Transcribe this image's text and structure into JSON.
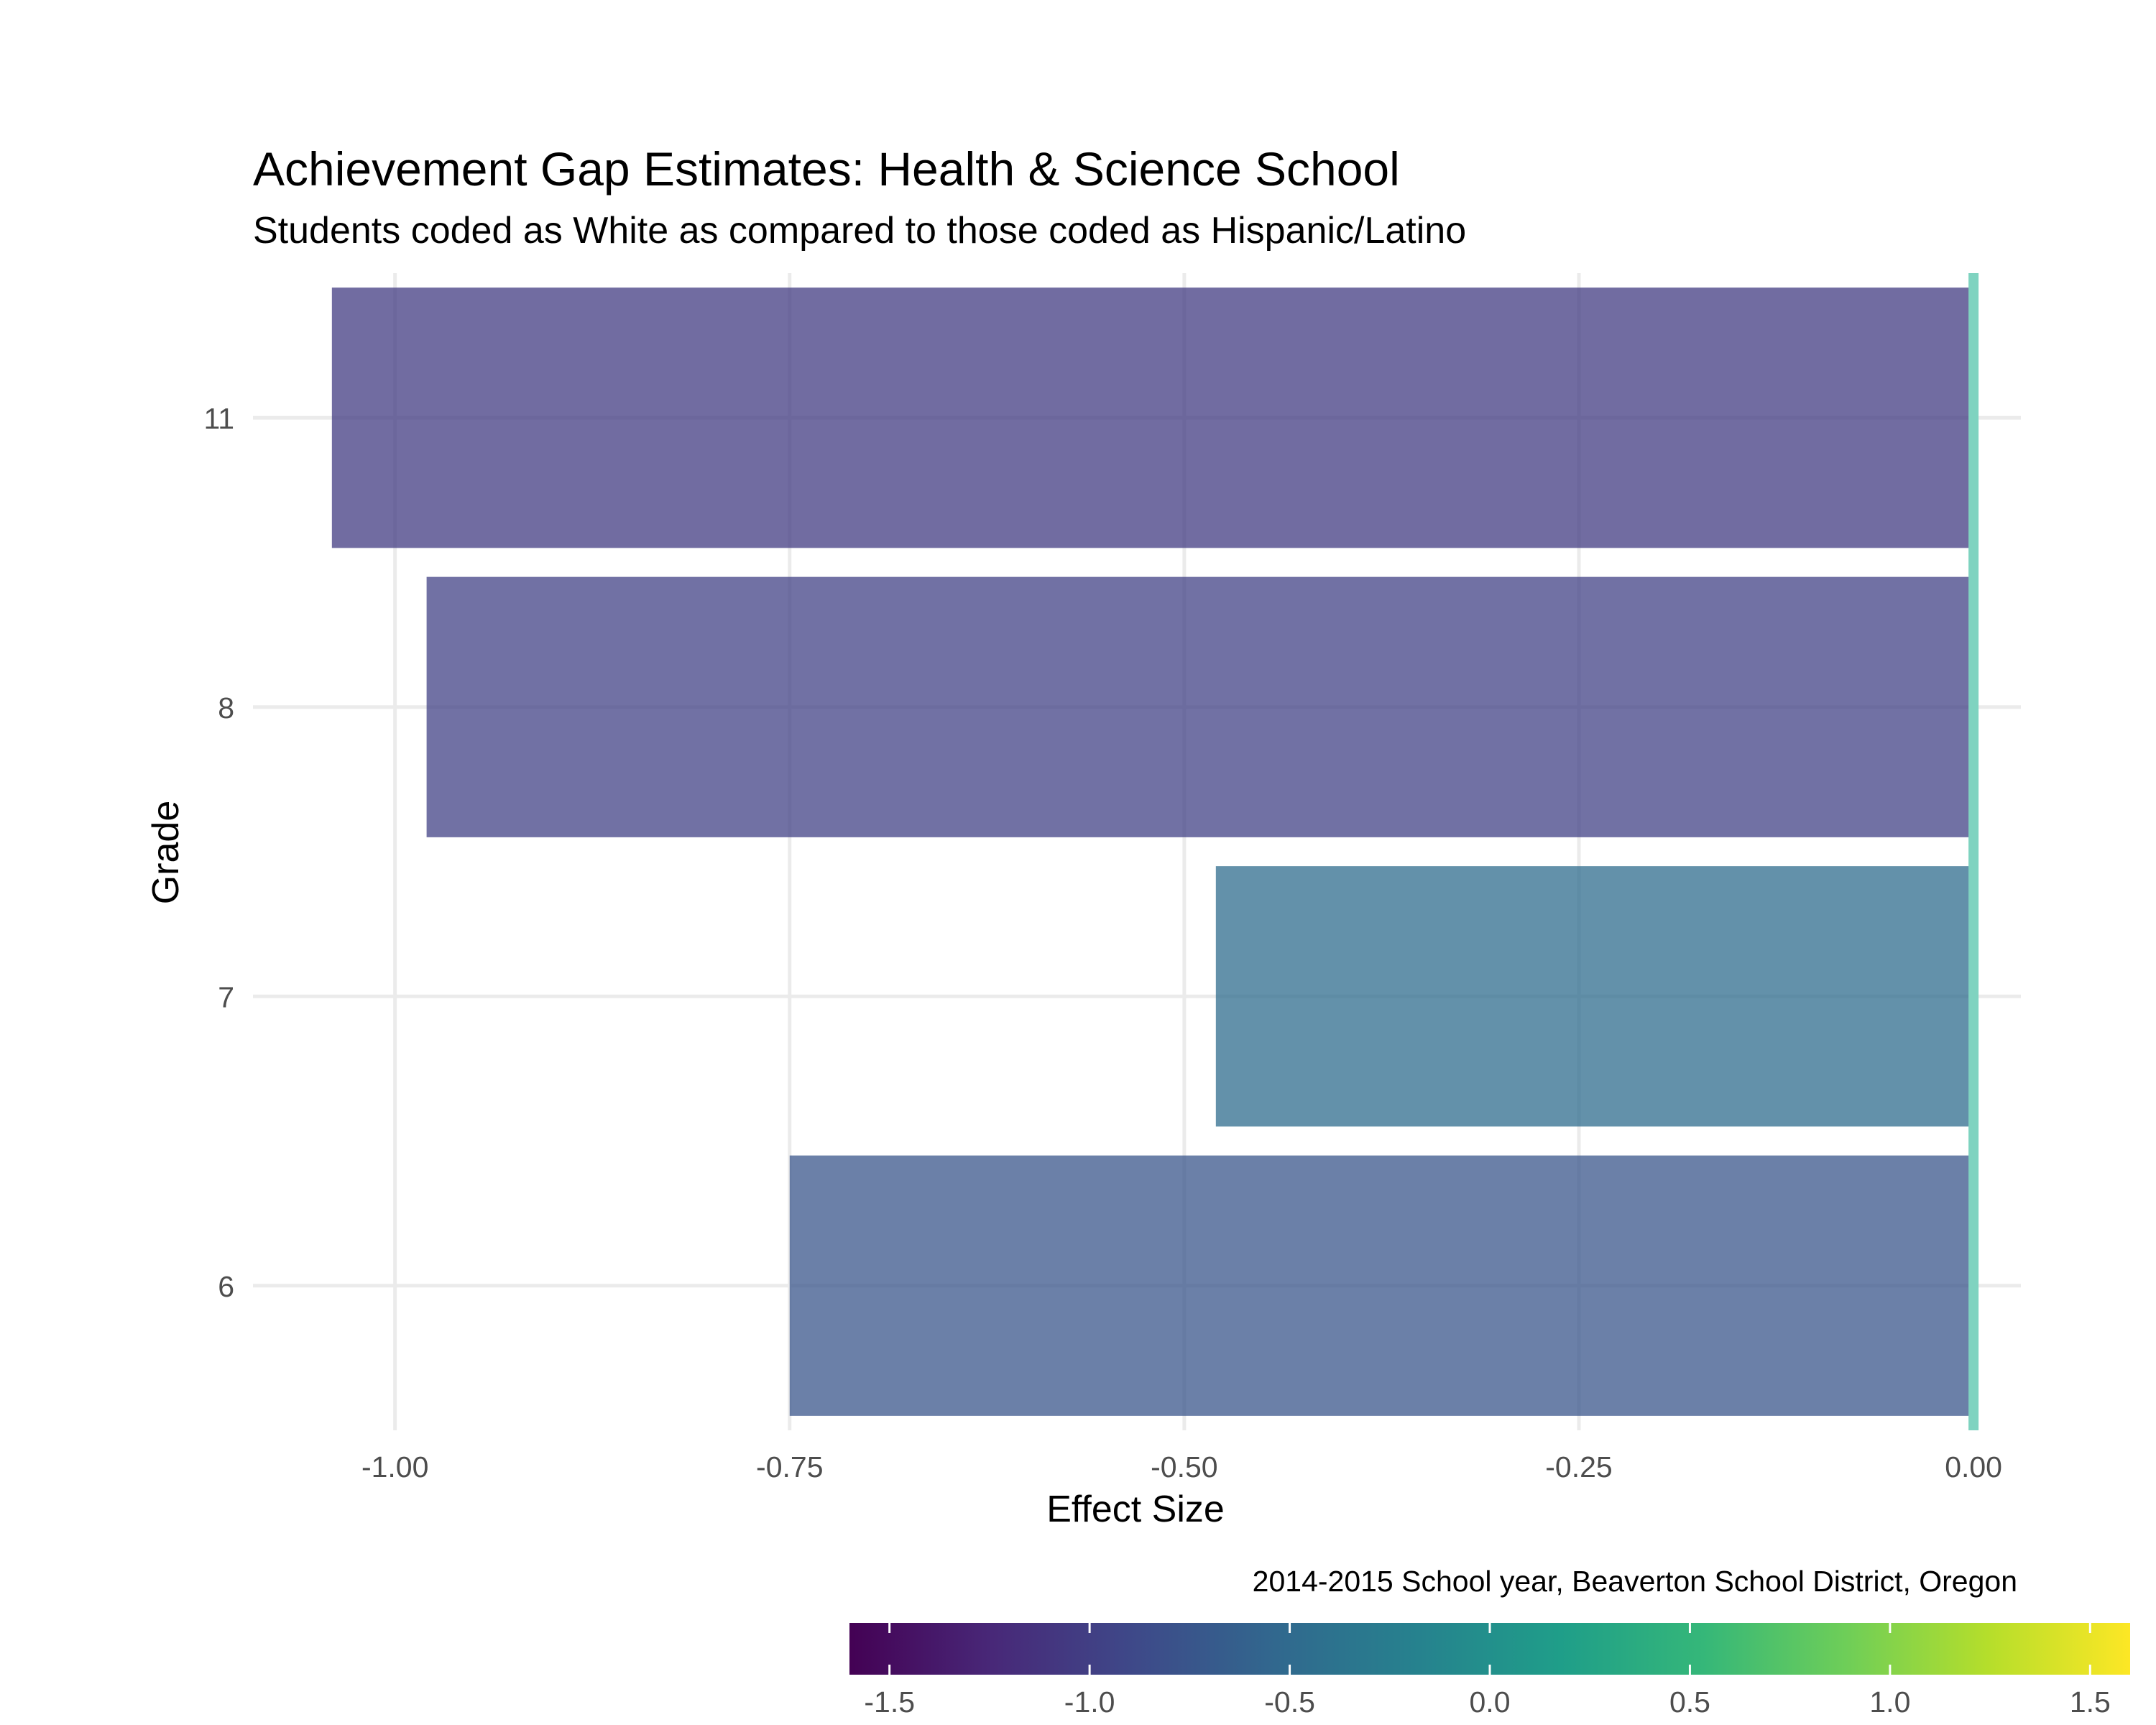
{
  "chart_data": {
    "type": "bar",
    "orientation": "horizontal",
    "title": "Achievement Gap Estimates: Health & Science School",
    "subtitle": "Students coded as White as compared to those coded as Hispanic/Latino",
    "xlabel": "Effect Size",
    "ylabel": "Grade",
    "caption": "2014-2015 School year, Beaverton School District, Oregon",
    "categories": [
      "6",
      "7",
      "8",
      "11"
    ],
    "values": [
      -0.75,
      -0.48,
      -0.98,
      -1.04
    ],
    "xlim": [
      -1.09,
      0.03
    ],
    "x_ticks": [
      "-1.00",
      "-0.75",
      "-0.50",
      "-0.25",
      "0.00"
    ],
    "x_tick_values": [
      -1.0,
      -0.75,
      -0.5,
      -0.25,
      0.0
    ],
    "reference_line": 0,
    "reference_line_color": "#7fd3c0",
    "grid": true,
    "legend_position": "bottom",
    "colorbar": {
      "palette": "viridis",
      "range": [
        -1.6,
        1.6
      ],
      "ticks": [
        "-1.5",
        "-1.0",
        "-0.5",
        "0.0",
        "0.5",
        "1.0",
        "1.5"
      ],
      "tick_values": [
        -1.5,
        -1.0,
        -0.5,
        0.0,
        0.5,
        1.0,
        1.5
      ]
    },
    "colors": {
      "viridis": [
        "#440154",
        "#482878",
        "#3e4989",
        "#31688e",
        "#26828e",
        "#1f9e89",
        "#35b779",
        "#6ece58",
        "#b5de2b",
        "#fde725"
      ],
      "bar_opacity": 0.75
    }
  }
}
